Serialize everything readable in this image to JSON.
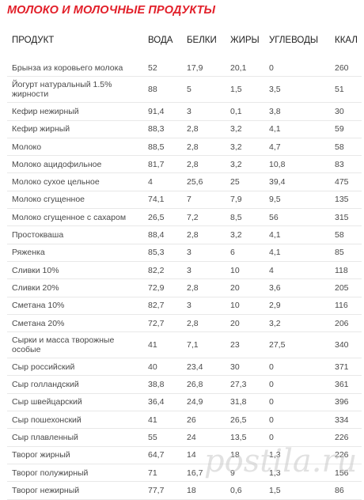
{
  "title": "МОЛОКО И МОЛОЧНЫЕ ПРОДУКТЫ",
  "headers": [
    "ПРОДУКТ",
    "ВОДА",
    "БЕЛКИ",
    "ЖИРЫ",
    "УГЛЕВОДЫ",
    "ККАЛ"
  ],
  "rows": [
    {
      "name": "Брынза из коровьего молока",
      "voda": "52",
      "belki": "17,9",
      "zhiry": "20,1",
      "uglevody": "0",
      "kkal": "260"
    },
    {
      "name": "Йогурт натуральный 1.5% жирности",
      "voda": "88",
      "belki": "5",
      "zhiry": "1,5",
      "uglevody": "3,5",
      "kkal": "51"
    },
    {
      "name": "Кефир нежирный",
      "voda": "91,4",
      "belki": "3",
      "zhiry": "0,1",
      "uglevody": "3,8",
      "kkal": "30"
    },
    {
      "name": "Кефир жирный",
      "voda": "88,3",
      "belki": "2,8",
      "zhiry": "3,2",
      "uglevody": "4,1",
      "kkal": "59"
    },
    {
      "name": "Молоко",
      "voda": "88,5",
      "belki": "2,8",
      "zhiry": "3,2",
      "uglevody": "4,7",
      "kkal": "58"
    },
    {
      "name": "Молоко ацидофильное",
      "voda": "81,7",
      "belki": "2,8",
      "zhiry": "3,2",
      "uglevody": "10,8",
      "kkal": "83"
    },
    {
      "name": "Молоко сухое цельное",
      "voda": "4",
      "belki": "25,6",
      "zhiry": "25",
      "uglevody": "39,4",
      "kkal": "475"
    },
    {
      "name": "Молоко сгущенное",
      "voda": "74,1",
      "belki": "7",
      "zhiry": "7,9",
      "uglevody": "9,5",
      "kkal": "135"
    },
    {
      "name": "Молоко сгущенное с сахаром",
      "voda": "26,5",
      "belki": "7,2",
      "zhiry": "8,5",
      "uglevody": "56",
      "kkal": "315"
    },
    {
      "name": "Простокваша",
      "voda": "88,4",
      "belki": "2,8",
      "zhiry": "3,2",
      "uglevody": "4,1",
      "kkal": "58"
    },
    {
      "name": "Ряженка",
      "voda": "85,3",
      "belki": "3",
      "zhiry": "6",
      "uglevody": "4,1",
      "kkal": "85"
    },
    {
      "name": "Сливки 10%",
      "voda": "82,2",
      "belki": "3",
      "zhiry": "10",
      "uglevody": "4",
      "kkal": "118"
    },
    {
      "name": "Сливки 20%",
      "voda": "72,9",
      "belki": "2,8",
      "zhiry": "20",
      "uglevody": "3,6",
      "kkal": "205"
    },
    {
      "name": "Сметана 10%",
      "voda": "82,7",
      "belki": "3",
      "zhiry": "10",
      "uglevody": "2,9",
      "kkal": "116"
    },
    {
      "name": "Сметана 20%",
      "voda": "72,7",
      "belki": "2,8",
      "zhiry": "20",
      "uglevody": "3,2",
      "kkal": "206"
    },
    {
      "name": "Сырки и масса творожные особые",
      "voda": "41",
      "belki": "7,1",
      "zhiry": "23",
      "uglevody": "27,5",
      "kkal": "340"
    },
    {
      "name": "Сыр российский",
      "voda": "40",
      "belki": "23,4",
      "zhiry": "30",
      "uglevody": "0",
      "kkal": "371"
    },
    {
      "name": "Сыр голландский",
      "voda": "38,8",
      "belki": "26,8",
      "zhiry": "27,3",
      "uglevody": "0",
      "kkal": "361"
    },
    {
      "name": "Сыр швейцарский",
      "voda": "36,4",
      "belki": "24,9",
      "zhiry": "31,8",
      "uglevody": "0",
      "kkal": "396"
    },
    {
      "name": "Сыр пошехонский",
      "voda": "41",
      "belki": "26",
      "zhiry": "26,5",
      "uglevody": "0",
      "kkal": "334"
    },
    {
      "name": "Сыр плавленный",
      "voda": "55",
      "belki": "24",
      "zhiry": "13,5",
      "uglevody": "0",
      "kkal": "226"
    },
    {
      "name": "Творог жирный",
      "voda": "64,7",
      "belki": "14",
      "zhiry": "18",
      "uglevody": "1,3",
      "kkal": "226"
    },
    {
      "name": "Творог полужирный",
      "voda": "71",
      "belki": "16,7",
      "zhiry": "9",
      "uglevody": "1,3",
      "kkal": "156"
    },
    {
      "name": "Творог нежирный",
      "voda": "77,7",
      "belki": "18",
      "zhiry": "0,6",
      "uglevody": "1,5",
      "kkal": "86"
    }
  ],
  "tall_rows": [
    1,
    15
  ],
  "watermark": "postila.ru",
  "colors": {
    "title": "#e2202a",
    "text": "#4a4a4a",
    "header": "#222222",
    "row_border": "#e8e8e8"
  }
}
